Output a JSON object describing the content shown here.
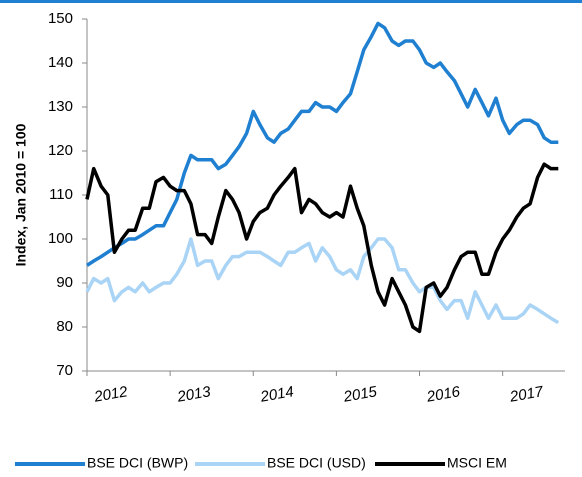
{
  "chart_data": {
    "type": "line",
    "y_label": "Index, Jan 2010 = 100",
    "x": [
      2012.0,
      2012.08,
      2012.17,
      2012.25,
      2012.33,
      2012.42,
      2012.5,
      2012.58,
      2012.67,
      2012.75,
      2012.83,
      2012.92,
      2013.0,
      2013.08,
      2013.17,
      2013.25,
      2013.33,
      2013.42,
      2013.5,
      2013.58,
      2013.67,
      2013.75,
      2013.83,
      2013.92,
      2014.0,
      2014.08,
      2014.17,
      2014.25,
      2014.33,
      2014.42,
      2014.5,
      2014.58,
      2014.67,
      2014.75,
      2014.83,
      2014.92,
      2015.0,
      2015.08,
      2015.17,
      2015.25,
      2015.33,
      2015.42,
      2015.5,
      2015.58,
      2015.67,
      2015.75,
      2015.83,
      2015.92,
      2016.0,
      2016.08,
      2016.17,
      2016.25,
      2016.33,
      2016.42,
      2016.5,
      2016.58,
      2016.67,
      2016.75,
      2016.83,
      2016.92,
      2017.0,
      2017.08,
      2017.17,
      2017.25,
      2017.33,
      2017.42,
      2017.5,
      2017.58,
      2017.67
    ],
    "series": [
      {
        "name": "BSE DCI (BWP)",
        "color": "#1f7fd0",
        "values": [
          94,
          95,
          96,
          97,
          98,
          99,
          100,
          100,
          101,
          102,
          103,
          103,
          106,
          109,
          115,
          119,
          118,
          118,
          118,
          116,
          117,
          119,
          121,
          124,
          129,
          126,
          123,
          122,
          124,
          125,
          127,
          129,
          129,
          131,
          130,
          130,
          129,
          131,
          133,
          138,
          143,
          146,
          149,
          148,
          145,
          144,
          145,
          145,
          143,
          140,
          139,
          140,
          138,
          136,
          133,
          130,
          134,
          131,
          128,
          132,
          127,
          124,
          126,
          127,
          127,
          126,
          123,
          122,
          122
        ]
      },
      {
        "name": "BSE DCI (USD)",
        "color": "#a9d4f6",
        "values": [
          88,
          91,
          90,
          91,
          86,
          88,
          89,
          88,
          90,
          88,
          89,
          90,
          90,
          92,
          95,
          100,
          94,
          95,
          95,
          91,
          94,
          96,
          96,
          97,
          97,
          97,
          96,
          95,
          94,
          97,
          97,
          98,
          99,
          95,
          98,
          96,
          93,
          92,
          93,
          91,
          96,
          98,
          100,
          100,
          98,
          93,
          93,
          90,
          88,
          89,
          89,
          86,
          84,
          86,
          86,
          82,
          88,
          85,
          82,
          85,
          82,
          82,
          82,
          83,
          85,
          84,
          83,
          82,
          81
        ]
      },
      {
        "name": "MSCI EM",
        "color": "#000000",
        "values": [
          109,
          116,
          112,
          110,
          97,
          100,
          102,
          102,
          107,
          107,
          113,
          114,
          112,
          111,
          111,
          108,
          101,
          101,
          99,
          105,
          111,
          109,
          106,
          100,
          104,
          106,
          107,
          110,
          112,
          114,
          116,
          106,
          109,
          108,
          106,
          105,
          106,
          105,
          112,
          107,
          103,
          94,
          88,
          85,
          91,
          88,
          85,
          80,
          79,
          89,
          90,
          87,
          89,
          93,
          96,
          97,
          97,
          92,
          92,
          97,
          100,
          102,
          105,
          107,
          108,
          114,
          117,
          116,
          116
        ]
      }
    ],
    "xlim": [
      2012,
      2017.75
    ],
    "xticks": [
      2012,
      2013,
      2014,
      2015,
      2016,
      2017
    ],
    "ylim": [
      70,
      150
    ],
    "yticks": [
      70,
      80,
      90,
      100,
      110,
      120,
      130,
      140,
      150
    ],
    "legend": "bottom"
  }
}
